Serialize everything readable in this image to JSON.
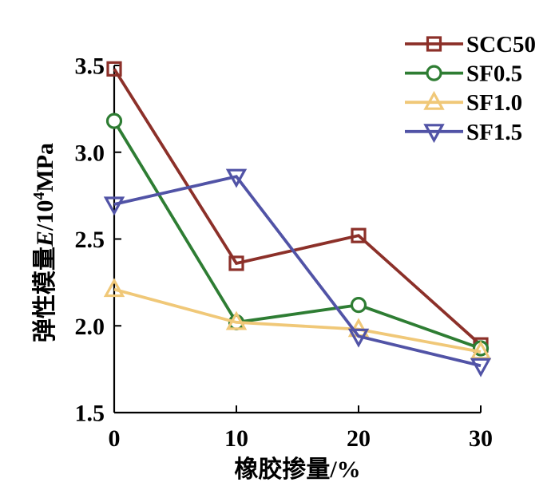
{
  "chart_data": {
    "type": "line",
    "title": "",
    "xlabel": "橡胶掺量/%",
    "ylabel": "弹性模量E/10⁴MPa",
    "ylabel_parts": {
      "prefix": "弹性模量",
      "symbol_italic": "E",
      "divider": "/10",
      "superscript": "4",
      "unit": "MPa"
    },
    "x": [
      0,
      10,
      20,
      30
    ],
    "x_tick_labels": [
      "0",
      "10",
      "20",
      "30"
    ],
    "y_ticks": [
      1.5,
      2.0,
      2.5,
      3.0,
      3.5
    ],
    "y_tick_labels": [
      "1.5",
      "2.0",
      "2.5",
      "3.0",
      "3.5"
    ],
    "xlim": [
      0,
      30
    ],
    "ylim": [
      1.5,
      3.5
    ],
    "grid": false,
    "legend_position": "top-right",
    "background": "#FFFFFF",
    "axis_color": "#000000",
    "series": [
      {
        "name": "SCC50",
        "marker": "square",
        "color": "#8C3029",
        "values": [
          3.48,
          2.36,
          2.52,
          1.89
        ]
      },
      {
        "name": "SF0.5",
        "marker": "circle",
        "color": "#2E7D33",
        "values": [
          3.18,
          2.02,
          2.12,
          1.87
        ]
      },
      {
        "name": "SF1.0",
        "marker": "triangle-up",
        "color": "#F0C878",
        "values": [
          2.21,
          2.02,
          1.98,
          1.85
        ]
      },
      {
        "name": "SF1.5",
        "marker": "triangle-down",
        "color": "#5153A6",
        "values": [
          2.7,
          2.86,
          1.94,
          1.77
        ]
      }
    ]
  }
}
